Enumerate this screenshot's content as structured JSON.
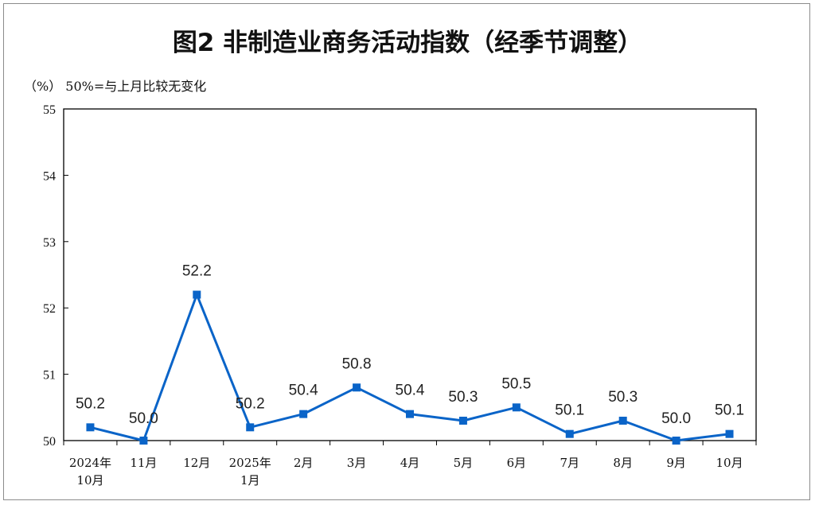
{
  "chart_data": {
    "type": "line",
    "title": "图2  非制造业商务活动指数（经季节调整）",
    "unit_note": "（%）  50%=与上月比较无变化",
    "categories": [
      [
        "2024年",
        "10月"
      ],
      [
        "11月"
      ],
      [
        "12月"
      ],
      [
        "2025年",
        "1月"
      ],
      [
        "2月"
      ],
      [
        "3月"
      ],
      [
        "4月"
      ],
      [
        "5月"
      ],
      [
        "6月"
      ],
      [
        "7月"
      ],
      [
        "8月"
      ],
      [
        "9月"
      ],
      [
        "10月"
      ]
    ],
    "values": [
      50.2,
      50.0,
      52.2,
      50.2,
      50.4,
      50.8,
      50.4,
      50.3,
      50.5,
      50.1,
      50.3,
      50.0,
      50.1
    ],
    "data_labels": [
      "50.2",
      "50.0",
      "52.2",
      "50.2",
      "50.4",
      "50.8",
      "50.4",
      "50.3",
      "50.5",
      "50.1",
      "50.3",
      "50.0",
      "50.1"
    ],
    "yticks": [
      "50",
      "51",
      "52",
      "53",
      "54",
      "55"
    ],
    "ylim": [
      50,
      55
    ],
    "grid": false,
    "line_color": "#0a64c8"
  }
}
